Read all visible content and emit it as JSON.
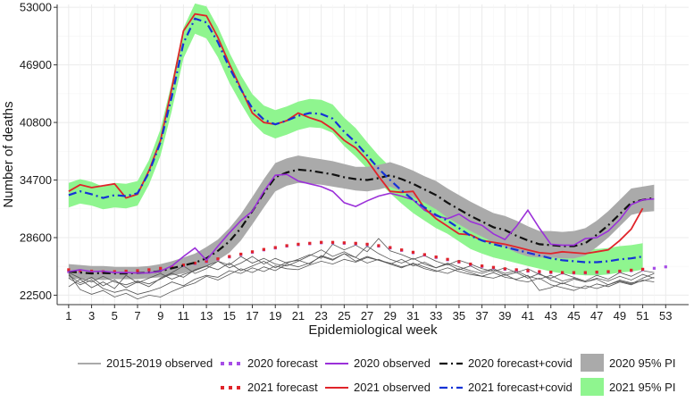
{
  "chart_data": {
    "type": "line",
    "title": "",
    "xlabel": "Epidemiological week",
    "ylabel": "Number of deaths",
    "xlim": [
      0,
      55
    ],
    "ylim": [
      21500,
      53300
    ],
    "x_ticks": [
      1,
      3,
      5,
      7,
      9,
      11,
      13,
      15,
      17,
      19,
      21,
      23,
      25,
      27,
      29,
      31,
      33,
      35,
      37,
      39,
      41,
      43,
      45,
      47,
      49,
      51,
      53
    ],
    "y_ticks": [
      22500,
      28600,
      34700,
      40800,
      46900,
      53000
    ],
    "y_tick_labels": [
      "22500",
      "28600",
      "34700",
      "40800",
      "46900",
      "53000"
    ],
    "grid": true,
    "legend_position": "bottom",
    "colors": {
      "observed_2015_2019": "#555555",
      "forecast_2020": "#a64de6",
      "observed_2020": "#9b30d9",
      "forecast_covid_2020": "#111111",
      "pi_2020": "#aaaaaa",
      "forecast_2021": "#e0242a",
      "observed_2021": "#e0242a",
      "forecast_covid_2021": "#1433d6",
      "pi_2021": "#8ff58f"
    },
    "legend": {
      "observed_2015_2019": "2015-2019 observed",
      "forecast_2020": "2020 forecast",
      "observed_2020": "2020 observed",
      "forecast_covid_2020": "2020 forecast+covid",
      "pi_2020": "2020 95% PI",
      "forecast_2021": "2021 forecast",
      "observed_2021": "2021 observed",
      "forecast_covid_2021": "2021 forecast+covid",
      "pi_2021": "2021 95% PI"
    },
    "series": {
      "observed_2015_2019": [
        {
          "name": "2015",
          "values": [
            23400,
            24200,
            23300,
            23900,
            23200,
            24600,
            23800,
            24300,
            24800,
            24200,
            24700,
            25100,
            25600,
            25200,
            25900,
            25100,
            25600,
            26100,
            25400,
            26000,
            26200,
            25800,
            26700,
            26300,
            26900,
            26100,
            26600,
            26200,
            25800,
            26300,
            25600,
            26000,
            25400,
            25800,
            25200,
            25600,
            25000,
            25300,
            24800,
            25100,
            24500,
            24200,
            24600,
            24000,
            24300,
            23900,
            24200,
            23600,
            24100,
            23800,
            24000,
            24400
          ]
        },
        {
          "name": "2016",
          "values": [
            24600,
            23800,
            24400,
            23500,
            24100,
            23300,
            23900,
            23400,
            24300,
            24900,
            25600,
            24800,
            25300,
            26100,
            25700,
            26600,
            25900,
            26400,
            25800,
            25600,
            26100,
            26700,
            27300,
            26600,
            27100,
            26500,
            27700,
            26900,
            26300,
            25900,
            26400,
            25800,
            25400,
            25900,
            25500,
            25100,
            24800,
            25200,
            24600,
            24900,
            24300,
            24800,
            24100,
            23700,
            24200,
            23900,
            24300,
            24000,
            24500,
            24100,
            24700,
            24300
          ]
        },
        {
          "name": "2017",
          "values": [
            24900,
            24300,
            23900,
            24500,
            23900,
            23600,
            24000,
            23700,
            24200,
            24800,
            24400,
            25200,
            25600,
            26100,
            25400,
            25900,
            26600,
            25800,
            26400,
            25900,
            26300,
            26800,
            26400,
            27900,
            27300,
            27800,
            27100,
            28500,
            27200,
            26800,
            26300,
            26700,
            26100,
            25700,
            26200,
            25800,
            25300,
            25000,
            25400,
            24900,
            25300,
            24700,
            24300,
            24800,
            24400,
            24000,
            24600,
            24200,
            24900,
            24500,
            25100,
            24900
          ]
        },
        {
          "name": "2018",
          "values": [
            24300,
            23600,
            24100,
            23200,
            22800,
            23100,
            22600,
            22900,
            23300,
            23900,
            23500,
            24200,
            24600,
            24400,
            25100,
            24800,
            25400,
            25000,
            25600,
            25300,
            25200,
            25700,
            26100,
            25800,
            26300,
            26000,
            26500,
            26200,
            25900,
            25500,
            25800,
            25300,
            25000,
            25400,
            25000,
            24700,
            24500,
            24900,
            24400,
            24200,
            24600,
            23000,
            23300,
            23800,
            23400,
            23200,
            23700,
            23400,
            23900,
            23600,
            24100,
            23900
          ]
        },
        {
          "name": "2019",
          "values": [
            24800,
            23100,
            22600,
            23000,
            22300,
            22700,
            22100,
            22500,
            22300,
            22900,
            23400,
            23800,
            24500,
            24100,
            24700,
            25300,
            24900,
            25500,
            25100,
            25800,
            25500,
            25900,
            26600,
            26200,
            26900,
            26500,
            25900,
            26300,
            25800,
            25400,
            25900,
            25500,
            25100,
            24800,
            25300,
            24900,
            24500,
            24300,
            24700,
            24100,
            23900,
            24300,
            23600,
            23300,
            23000,
            23500,
            23200,
            23600,
            24000,
            23700,
            24300,
            24800
          ]
        }
      ],
      "forecast_2020": {
        "x_start": 1,
        "values": [
          25000,
          24950,
          24900,
          24900,
          24950,
          25000,
          25050,
          25150,
          25300,
          25450,
          25650,
          25850,
          26050,
          26300,
          26550,
          26800,
          27050,
          27300,
          27500,
          27700,
          27850,
          27950,
          28050,
          28050,
          28000,
          27950,
          27850,
          27700,
          27500,
          27250,
          27000,
          26750,
          26500,
          26250,
          26000,
          25750,
          25550,
          25400,
          25250,
          25150,
          25050,
          24950,
          24900,
          24850,
          24850,
          24850,
          24900,
          24950,
          25000,
          25100,
          25200,
          25350,
          25500
        ]
      },
      "observed_2020": {
        "x_start": 1,
        "values": [
          25000,
          25200,
          25000,
          25050,
          24900,
          24900,
          24850,
          24850,
          25050,
          25600,
          26600,
          27500,
          26200,
          27700,
          29100,
          30400,
          31400,
          33500,
          35200,
          35300,
          34600,
          34300,
          34000,
          33500,
          32300,
          31900,
          32500,
          33000,
          33300,
          33000,
          32600,
          31500,
          30900,
          30600,
          31100,
          30300,
          29900,
          29000,
          28400,
          29800,
          31500,
          29600,
          27900,
          27800,
          27800,
          28500,
          28600,
          29300,
          30500,
          32100,
          32600,
          32700
        ]
      },
      "forecast_covid_2020": {
        "x_start": 1,
        "values": [
          25000,
          24900,
          24800,
          24850,
          24800,
          24800,
          24850,
          24900,
          25050,
          25350,
          25650,
          25950,
          26400,
          27200,
          28200,
          29600,
          31400,
          33300,
          35000,
          35500,
          35800,
          35700,
          35500,
          35300,
          35000,
          34800,
          34700,
          34900,
          35200,
          34800,
          34300,
          33700,
          33100,
          32300,
          31600,
          30900,
          30300,
          29700,
          29400,
          28800,
          28300,
          27900,
          27800,
          27700,
          27700,
          28000,
          28900,
          29900,
          31100,
          32300,
          32600,
          32800
        ]
      },
      "pi_2020": {
        "x_start": 1,
        "lower": [
          24300,
          24200,
          24200,
          24100,
          24200,
          24200,
          24200,
          24300,
          24400,
          24600,
          24800,
          25100,
          25500,
          26200,
          27000,
          28300,
          30000,
          31800,
          33500,
          34100,
          34400,
          34300,
          34200,
          34000,
          33800,
          33600,
          33500,
          33700,
          34000,
          33500,
          32900,
          32300,
          31600,
          30700,
          30000,
          29300,
          28700,
          28100,
          27600,
          27000,
          26600,
          26500,
          26500,
          26400,
          26400,
          26700,
          27600,
          28600,
          29800,
          31000,
          31300,
          31400
        ],
        "upper": [
          25800,
          25700,
          25600,
          25600,
          25500,
          25500,
          25500,
          25600,
          25800,
          26100,
          26500,
          26900,
          27600,
          28400,
          29600,
          31100,
          32900,
          34800,
          36500,
          37000,
          37300,
          37100,
          36900,
          36700,
          36400,
          36100,
          36100,
          36300,
          36600,
          36200,
          35700,
          35100,
          34600,
          33800,
          33100,
          32400,
          31800,
          31200,
          30900,
          30400,
          29800,
          29300,
          29300,
          29200,
          29300,
          29600,
          30400,
          31400,
          32600,
          33800,
          34000,
          34200
        ]
      },
      "forecast_2021": {
        "x_start": 1,
        "values": [
          25200,
          25100,
          25050,
          25000,
          25000,
          25050,
          25100,
          25200,
          25350,
          25500,
          25700,
          25900,
          26100,
          26350,
          26600,
          26850,
          27100,
          27350,
          27550,
          27750,
          27900,
          28000,
          28100,
          28100,
          28050,
          28000,
          27900,
          27750,
          27550,
          27300,
          27050,
          26800,
          26550,
          26300,
          26050,
          25800,
          25600,
          25450,
          25300,
          25200,
          25100,
          25000,
          24950,
          24900,
          24900,
          24900,
          24950,
          25000,
          25050,
          25150,
          25250
        ]
      },
      "observed_2021": {
        "x_start": 1,
        "values": [
          33500,
          34200,
          33900,
          34100,
          34300,
          32800,
          33200,
          35700,
          38900,
          44500,
          50500,
          52300,
          52100,
          49800,
          47000,
          44400,
          41800,
          40800,
          40600,
          41000,
          41800,
          41300,
          40900,
          40100,
          38900,
          38100,
          36800,
          35100,
          33500,
          33400,
          33500,
          31700,
          30600,
          29800,
          29000,
          28900,
          28300,
          28100,
          27900,
          27600,
          27300,
          27000,
          26900,
          27100,
          27000,
          26900,
          27100,
          27300,
          28300,
          29500,
          31700
        ]
      },
      "forecast_covid_2021": {
        "x_start": 1,
        "values": [
          33100,
          33500,
          33200,
          32800,
          33100,
          33000,
          33300,
          35500,
          38700,
          43600,
          49200,
          51800,
          51400,
          49300,
          46600,
          44300,
          42300,
          41100,
          40600,
          41000,
          41500,
          41800,
          41700,
          41200,
          39800,
          38700,
          37300,
          35900,
          34700,
          33600,
          32600,
          31800,
          31000,
          30400,
          29600,
          28800,
          28300,
          27900,
          27600,
          27300,
          27000,
          26700,
          26400,
          26200,
          26100,
          26000,
          26000,
          26100,
          26300,
          26400,
          26600
        ]
      },
      "pi_2021": {
        "x_start": 1,
        "lower": [
          31800,
          32200,
          32000,
          31600,
          31800,
          31700,
          32000,
          34200,
          37300,
          42100,
          47600,
          50200,
          49700,
          47700,
          45000,
          42800,
          40800,
          39600,
          39100,
          39500,
          40000,
          40300,
          40200,
          39700,
          38300,
          37200,
          35900,
          34500,
          33300,
          32200,
          31200,
          30400,
          29600,
          29000,
          28200,
          27400,
          26900,
          26500,
          26200,
          25900,
          25600,
          25300,
          25000,
          24800,
          24700,
          24600,
          24600,
          24700,
          24900,
          25000,
          25200
        ],
        "upper": [
          34400,
          34800,
          34500,
          34000,
          34400,
          34300,
          34600,
          36800,
          40100,
          45100,
          50800,
          53400,
          53100,
          50900,
          48200,
          45800,
          43800,
          42600,
          42100,
          42500,
          43000,
          43300,
          43200,
          42700,
          41300,
          40200,
          38700,
          37300,
          36100,
          35000,
          34000,
          33200,
          32400,
          31800,
          31000,
          30200,
          29700,
          29300,
          29000,
          28700,
          28400,
          28100,
          27800,
          27600,
          27500,
          27400,
          27400,
          27500,
          27700,
          27800,
          28000
        ]
      }
    }
  }
}
